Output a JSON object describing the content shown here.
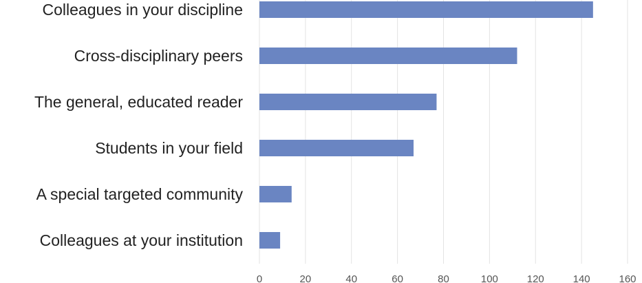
{
  "chart_data": {
    "type": "bar",
    "orientation": "horizontal",
    "categories": [
      "Colleagues in your discipline",
      "Cross-disciplinary peers",
      "The general, educated reader",
      "Students in your field",
      "A special targeted community",
      "Colleagues at your institution"
    ],
    "values": [
      145,
      112,
      77,
      67,
      14,
      9
    ],
    "xlim": [
      0,
      160
    ],
    "xticks": [
      "0",
      "20",
      "40",
      "60",
      "80",
      "100",
      "120",
      "140",
      "160"
    ],
    "grid": "vertical",
    "legend": "none",
    "colors": {
      "bar": "#6A85C2",
      "grid": "#e3e3e3"
    }
  }
}
